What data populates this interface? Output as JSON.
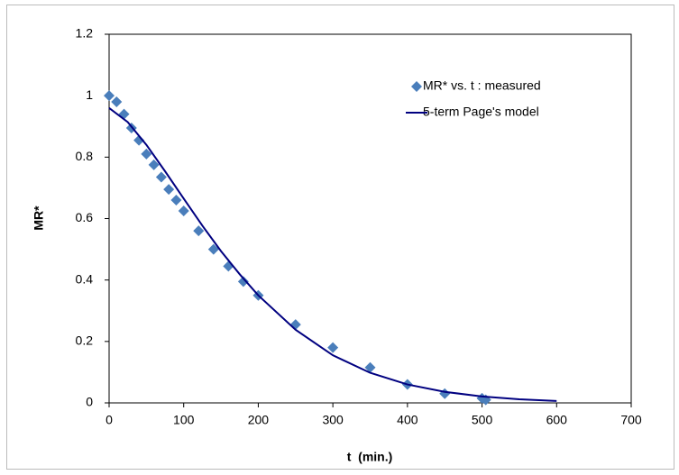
{
  "chart_data": {
    "type": "scatter",
    "x_label": "t  (min.)",
    "y_label": "MR*",
    "xlim": [
      0,
      700
    ],
    "xticks": [
      0,
      100,
      200,
      300,
      400,
      500,
      600,
      700
    ],
    "ylim": [
      0,
      1.2
    ],
    "yticks": [
      0,
      0.2,
      0.4,
      0.6,
      0.8,
      1,
      1.2
    ],
    "grid": false,
    "legend": "upper right",
    "series": [
      {
        "name": "MR* vs. t : measured",
        "color": "#4a7ebb",
        "type": "scatter",
        "x": [
          0,
          10,
          20,
          30,
          40,
          50,
          60,
          70,
          80,
          90,
          100,
          120,
          140,
          160,
          180,
          200,
          250,
          300,
          350,
          400,
          450,
          500,
          505
        ],
        "values": [
          1.0,
          0.98,
          0.94,
          0.895,
          0.855,
          0.81,
          0.775,
          0.735,
          0.695,
          0.66,
          0.625,
          0.56,
          0.5,
          0.445,
          0.395,
          0.35,
          0.255,
          0.18,
          0.115,
          0.06,
          0.03,
          0.015,
          0.01
        ]
      },
      {
        "name": "5-term Page's model",
        "color": "#000080",
        "type": "line",
        "x": [
          0,
          25,
          50,
          75,
          100,
          125,
          150,
          175,
          200,
          250,
          300,
          350,
          400,
          450,
          500,
          550,
          600
        ],
        "values": [
          0.96,
          0.914,
          0.84,
          0.754,
          0.665,
          0.577,
          0.494,
          0.419,
          0.35,
          0.238,
          0.155,
          0.098,
          0.06,
          0.036,
          0.021,
          0.0117,
          0.0064
        ]
      }
    ]
  }
}
